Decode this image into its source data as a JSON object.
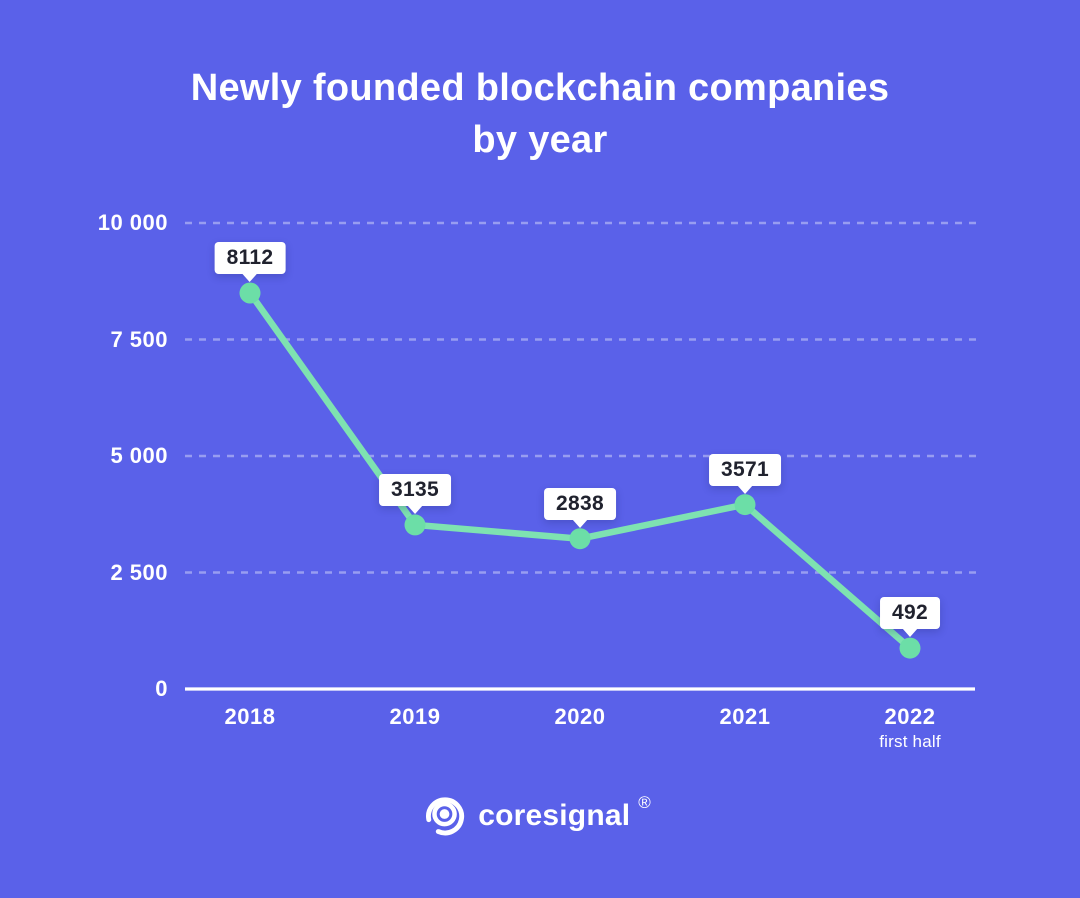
{
  "title": {
    "line1": "Newly founded blockchain companies",
    "line2": "by year"
  },
  "chart_data": {
    "type": "line",
    "title": "Newly founded blockchain companies by year",
    "categories": [
      "2018",
      "2019",
      "2020",
      "2021",
      "2022"
    ],
    "category_sublabels": [
      "",
      "",
      "",
      "",
      "first half"
    ],
    "values": [
      8112,
      3135,
      2838,
      3571,
      492
    ],
    "data_labels": [
      "8112",
      "3135",
      "2838",
      "3571",
      "492"
    ],
    "yticks": [
      {
        "label": "10 000",
        "value": 10000
      },
      {
        "label": "7 500",
        "value": 7500
      },
      {
        "label": "5 000",
        "value": 5000
      },
      {
        "label": "2 500",
        "value": 2500
      },
      {
        "label": "0",
        "value": 0
      }
    ],
    "ylim": [
      0,
      10000
    ],
    "xlabel": "",
    "ylabel": "",
    "grid": "horizontal-dashed",
    "legend": "none",
    "colors": {
      "background": "#5A61E9",
      "line": "#7EE2B1",
      "point": "#6CDEA7",
      "grid": "rgba(255,255,255,0.38)",
      "axis": "#FFFFFF",
      "tooltip_bg": "#FFFFFF",
      "tooltip_text": "#20222E",
      "label_text": "#FFFFFF"
    }
  },
  "logo": {
    "text": "coresignal",
    "registered": "®"
  }
}
